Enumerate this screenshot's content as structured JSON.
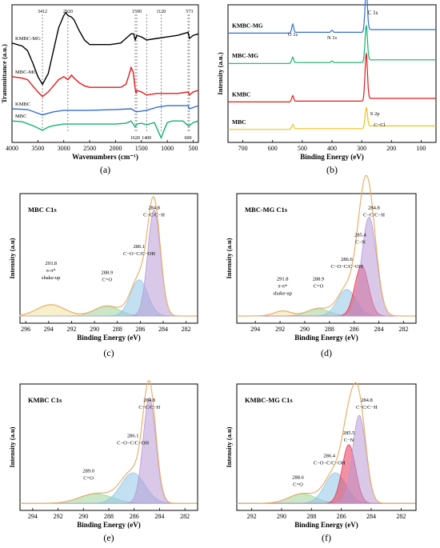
{
  "chart_data": [
    {
      "id": "a",
      "type": "line",
      "panel_label": "(a)",
      "xlabel": "Wavenumbers (cm⁻¹)",
      "ylabel": "Transmittance (a.u.)",
      "xlim": [
        4000,
        400
      ],
      "xticks": [
        4000,
        3500,
        3000,
        2500,
        2000,
        1500,
        1000,
        500
      ],
      "series": [
        {
          "name": "KMBC-MG",
          "color": "#000000",
          "points": [
            [
              4000,
              0.6
            ],
            [
              3800,
              0.58
            ],
            [
              3700,
              0.55
            ],
            [
              3600,
              0.47
            ],
            [
              3500,
              0.38
            ],
            [
              3412,
              0.33
            ],
            [
              3300,
              0.4
            ],
            [
              3200,
              0.55
            ],
            [
              3100,
              0.7
            ],
            [
              3000,
              0.78
            ],
            [
              2960,
              0.8
            ],
            [
              2920,
              0.78
            ],
            [
              2850,
              0.77
            ],
            [
              2800,
              0.75
            ],
            [
              2700,
              0.68
            ],
            [
              2600,
              0.62
            ],
            [
              2500,
              0.59
            ],
            [
              2300,
              0.59
            ],
            [
              2100,
              0.59
            ],
            [
              1900,
              0.6
            ],
            [
              1800,
              0.63
            ],
            [
              1700,
              0.66
            ],
            [
              1650,
              0.66
            ],
            [
              1620,
              0.62
            ],
            [
              1590,
              0.65
            ],
            [
              1500,
              0.64
            ],
            [
              1400,
              0.62
            ],
            [
              1200,
              0.63
            ],
            [
              1000,
              0.64
            ],
            [
              800,
              0.65
            ],
            [
              600,
              0.67
            ],
            [
              573,
              0.63
            ],
            [
              500,
              0.65
            ],
            [
              400,
              0.66
            ]
          ]
        },
        {
          "name": "MBC-MG",
          "color": "#e31a1c",
          "points": [
            [
              4000,
              0.38
            ],
            [
              3800,
              0.37
            ],
            [
              3700,
              0.36
            ],
            [
              3600,
              0.32
            ],
            [
              3500,
              0.28
            ],
            [
              3412,
              0.25
            ],
            [
              3300,
              0.28
            ],
            [
              3200,
              0.32
            ],
            [
              3100,
              0.36
            ],
            [
              3000,
              0.38
            ],
            [
              2920,
              0.36
            ],
            [
              2850,
              0.39
            ],
            [
              2800,
              0.37
            ],
            [
              2700,
              0.34
            ],
            [
              2600,
              0.32
            ],
            [
              2500,
              0.31
            ],
            [
              2300,
              0.31
            ],
            [
              2100,
              0.31
            ],
            [
              1900,
              0.31
            ],
            [
              1800,
              0.33
            ],
            [
              1750,
              0.38
            ],
            [
              1700,
              0.44
            ],
            [
              1660,
              0.41
            ],
            [
              1620,
              0.3
            ],
            [
              1600,
              0.27
            ],
            [
              1590,
              0.29
            ],
            [
              1500,
              0.28
            ],
            [
              1400,
              0.26
            ],
            [
              1200,
              0.27
            ],
            [
              1000,
              0.27
            ],
            [
              800,
              0.27
            ],
            [
              600,
              0.28
            ],
            [
              573,
              0.26
            ],
            [
              500,
              0.28
            ],
            [
              400,
              0.29
            ]
          ]
        },
        {
          "name": "KMBC",
          "color": "#2f6fd1",
          "points": [
            [
              4000,
              0.17
            ],
            [
              3700,
              0.165
            ],
            [
              3412,
              0.13
            ],
            [
              3200,
              0.15
            ],
            [
              3000,
              0.16
            ],
            [
              2500,
              0.16
            ],
            [
              2000,
              0.165
            ],
            [
              1700,
              0.17
            ],
            [
              1600,
              0.15
            ],
            [
              1400,
              0.16
            ],
            [
              1200,
              0.18
            ],
            [
              1000,
              0.19
            ],
            [
              800,
              0.19
            ],
            [
              600,
              0.19
            ],
            [
              573,
              0.17
            ],
            [
              400,
              0.19
            ]
          ]
        },
        {
          "name": "MBC",
          "color": "#12b26d",
          "points": [
            [
              4000,
              0.09
            ],
            [
              3800,
              0.085
            ],
            [
              3600,
              0.06
            ],
            [
              3412,
              0.03
            ],
            [
              3300,
              0.05
            ],
            [
              3200,
              0.06
            ],
            [
              3000,
              0.07
            ],
            [
              2700,
              0.07
            ],
            [
              2300,
              0.07
            ],
            [
              2000,
              0.07
            ],
            [
              1800,
              0.075
            ],
            [
              1700,
              0.09
            ],
            [
              1620,
              0.05
            ],
            [
              1590,
              0.07
            ],
            [
              1500,
              0.075
            ],
            [
              1400,
              0.065
            ],
            [
              1250,
              0.08
            ],
            [
              1120,
              -0.02
            ],
            [
              1050,
              0.04
            ],
            [
              1000,
              0.08
            ],
            [
              900,
              0.09
            ],
            [
              800,
              0.09
            ],
            [
              700,
              0.09
            ],
            [
              600,
              0.06
            ],
            [
              573,
              0.06
            ],
            [
              500,
              0.08
            ],
            [
              400,
              0.09
            ]
          ]
        }
      ],
      "annotations": [
        {
          "x": 3412,
          "label": "3412",
          "pos": "top"
        },
        {
          "x": 2920,
          "label": "2920",
          "pos": "top"
        },
        {
          "x": 1590,
          "label": "1590",
          "pos": "top"
        },
        {
          "x": 1120,
          "label": "1120",
          "pos": "top"
        },
        {
          "x": 573,
          "label": "573",
          "pos": "top"
        },
        {
          "x": 1620,
          "label": "1620",
          "pos": "bottom"
        },
        {
          "x": 1400,
          "label": "1400",
          "pos": "bottom"
        },
        {
          "x": 600,
          "label": "600",
          "pos": "bottom"
        }
      ]
    },
    {
      "id": "b",
      "type": "line",
      "panel_label": "(b)",
      "xlabel": "Binding Energy (eV)",
      "ylabel": "Intensity (a.u.)",
      "xlim": [
        750,
        50
      ],
      "xticks": [
        700,
        600,
        500,
        400,
        300,
        200,
        100
      ],
      "series": [
        {
          "name": "KMBC-MG",
          "color": "#2f6fd1",
          "baseline": 0.8,
          "peaks": [
            [
              532,
              0.06
            ],
            [
              400,
              0.015
            ],
            [
              285,
              0.3
            ]
          ]
        },
        {
          "name": "MBC-MG",
          "color": "#12b26d",
          "baseline": 0.58,
          "peaks": [
            [
              532,
              0.04
            ],
            [
              400,
              0.012
            ],
            [
              285,
              0.26
            ]
          ]
        },
        {
          "name": "KMBC",
          "color": "#e31a1c",
          "baseline": 0.3,
          "peaks": [
            [
              532,
              0.04
            ],
            [
              285,
              0.34
            ]
          ]
        },
        {
          "name": "MBC",
          "color": "#f0c21a",
          "baseline": 0.1,
          "peaks": [
            [
              532,
              0.03
            ],
            [
              285,
              0.14
            ]
          ]
        }
      ],
      "annotations": [
        {
          "x": 532,
          "label": "O 1s"
        },
        {
          "x": 400,
          "label": "N 1s"
        },
        {
          "x": 285,
          "label": "C 1s"
        },
        {
          "x": 285,
          "label": "S 2p"
        },
        {
          "x": 270,
          "label": "C−Cl"
        }
      ]
    },
    {
      "id": "c",
      "type": "area",
      "panel_label": "(c)",
      "title": "MBC  C1s",
      "xlabel": "Binding Energy (eV)",
      "ylabel": "Intensity (a.u)",
      "xlim": [
        296.5,
        281
      ],
      "xticks": [
        296,
        294,
        292,
        290,
        288,
        286,
        284,
        282
      ],
      "envelope_color": "#e8b06a",
      "peaks": [
        {
          "center": 284.8,
          "height": 0.88,
          "sigma": 0.55,
          "color": "#b99ad6",
          "label": [
            "284.8",
            "C−C/C−H"
          ]
        },
        {
          "center": 286.1,
          "height": 0.3,
          "sigma": 0.75,
          "color": "#8fc7e8",
          "label": [
            "286.1",
            "C−O−C/C−OH"
          ]
        },
        {
          "center": 288.9,
          "height": 0.08,
          "sigma": 1.1,
          "color": "#9fd39a",
          "label": [
            "288.9",
            "C=O"
          ]
        },
        {
          "center": 293.8,
          "height": 0.09,
          "sigma": 1.2,
          "color": "#f1e6a0",
          "label": [
            "293.8",
            "π-π*",
            "shake-up"
          ]
        }
      ]
    },
    {
      "id": "d",
      "type": "area",
      "panel_label": "(d)",
      "title": "MBC-MG  C1s",
      "xlabel": "Binding Energy (eV)",
      "ylabel": "Intensity (a.u)",
      "xlim": [
        295.5,
        281
      ],
      "xticks": [
        294,
        292,
        290,
        288,
        286,
        284,
        282
      ],
      "envelope_color": "#e8b06a",
      "peaks": [
        {
          "center": 284.8,
          "height": 0.82,
          "sigma": 0.6,
          "color": "#b99ad6",
          "label": [
            "284.8",
            "C−C/C−H"
          ]
        },
        {
          "center": 285.4,
          "height": 0.42,
          "sigma": 0.55,
          "color": "#e8365a",
          "label": [
            "285.4",
            "C−N"
          ]
        },
        {
          "center": 286.6,
          "height": 0.22,
          "sigma": 0.75,
          "color": "#8fc7e8",
          "label": [
            "286.6",
            "C−O−C/C−OH"
          ]
        },
        {
          "center": 288.9,
          "height": 0.06,
          "sigma": 0.9,
          "color": "#9fd39a",
          "label": [
            "288.9",
            "C=O"
          ]
        },
        {
          "center": 291.8,
          "height": 0.04,
          "sigma": 0.7,
          "color": "#f1e6a0",
          "label": [
            "291.8",
            "π-π*",
            "shake-up"
          ]
        }
      ]
    },
    {
      "id": "e",
      "type": "area",
      "panel_label": "(e)",
      "title": "KMBC  C1s",
      "xlabel": "Binding Energy (eV)",
      "ylabel": "Intensity (a.u)",
      "xlim": [
        295,
        281
      ],
      "xticks": [
        294,
        292,
        290,
        288,
        286,
        284,
        282
      ],
      "envelope_color": "#e8b06a",
      "peaks": [
        {
          "center": 284.8,
          "height": 0.9,
          "sigma": 0.5,
          "color": "#b99ad6",
          "label": [
            "284.8",
            "C−C/C−H"
          ]
        },
        {
          "center": 286.1,
          "height": 0.26,
          "sigma": 0.95,
          "color": "#8fc7e8",
          "label": [
            "286.1",
            "C−O−C/C−OH"
          ]
        },
        {
          "center": 289.0,
          "height": 0.08,
          "sigma": 1.3,
          "color": "#9fd39a",
          "label": [
            "289.0",
            "C=O"
          ]
        }
      ]
    },
    {
      "id": "f",
      "type": "area",
      "panel_label": "(f)",
      "title": "KMBC-MG  C1s",
      "xlabel": "Binding Energy (eV)",
      "ylabel": "Intensity (a.u)",
      "xlim": [
        293,
        281
      ],
      "xticks": [
        292,
        290,
        288,
        286,
        284,
        282
      ],
      "envelope_color": "#e8b06a",
      "peaks": [
        {
          "center": 284.8,
          "height": 0.75,
          "sigma": 0.45,
          "color": "#b99ad6",
          "label": [
            "284.8",
            "C−C/C−H"
          ]
        },
        {
          "center": 285.5,
          "height": 0.5,
          "sigma": 0.45,
          "color": "#e8365a",
          "label": [
            "285.5",
            "C−N"
          ]
        },
        {
          "center": 286.4,
          "height": 0.26,
          "sigma": 0.7,
          "color": "#8fc7e8",
          "label": [
            "286.4",
            "C−O−C/C−OH"
          ]
        },
        {
          "center": 288.6,
          "height": 0.08,
          "sigma": 0.9,
          "color": "#9fd39a",
          "label": [
            "288.6",
            "C=O"
          ]
        }
      ]
    }
  ]
}
